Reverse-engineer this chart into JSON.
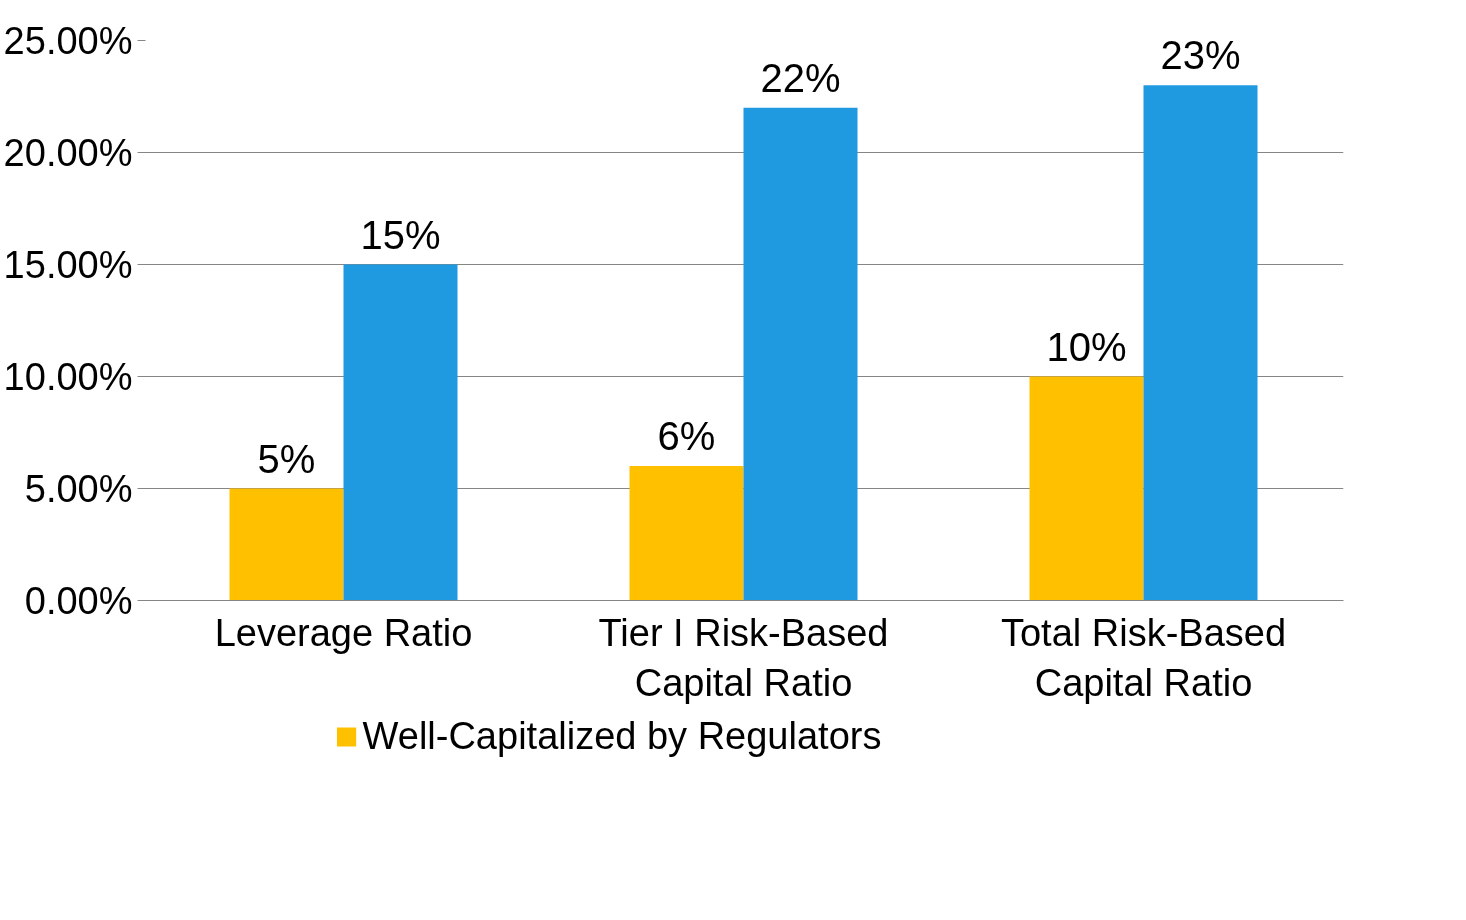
{
  "chart_data": {
    "type": "bar",
    "categories": [
      "Leverage Ratio",
      "Tier I Risk-Based Capital Ratio",
      "Total Risk-Based Capital Ratio"
    ],
    "series": [
      {
        "name": "Well-Capitalized by Regulators",
        "color": "#ffc000",
        "values": [
          5,
          6,
          10
        ],
        "value_labels": [
          "5%",
          "6%",
          "10%"
        ]
      },
      {
        "color": "#1f9ae0",
        "values": [
          15,
          22,
          23
        ],
        "value_labels": [
          "15%",
          "22%",
          "23%"
        ]
      }
    ],
    "ylim": [
      0,
      25
    ],
    "yticks": [
      {
        "value": 0,
        "label": "0.00%"
      },
      {
        "value": 5,
        "label": "5.00%"
      },
      {
        "value": 10,
        "label": "10.00%"
      },
      {
        "value": 15,
        "label": "15.00%"
      },
      {
        "value": 20,
        "label": "20.00%"
      },
      {
        "value": 25,
        "label": "25.00%"
      }
    ],
    "grid": "y",
    "legend": "bottom"
  }
}
